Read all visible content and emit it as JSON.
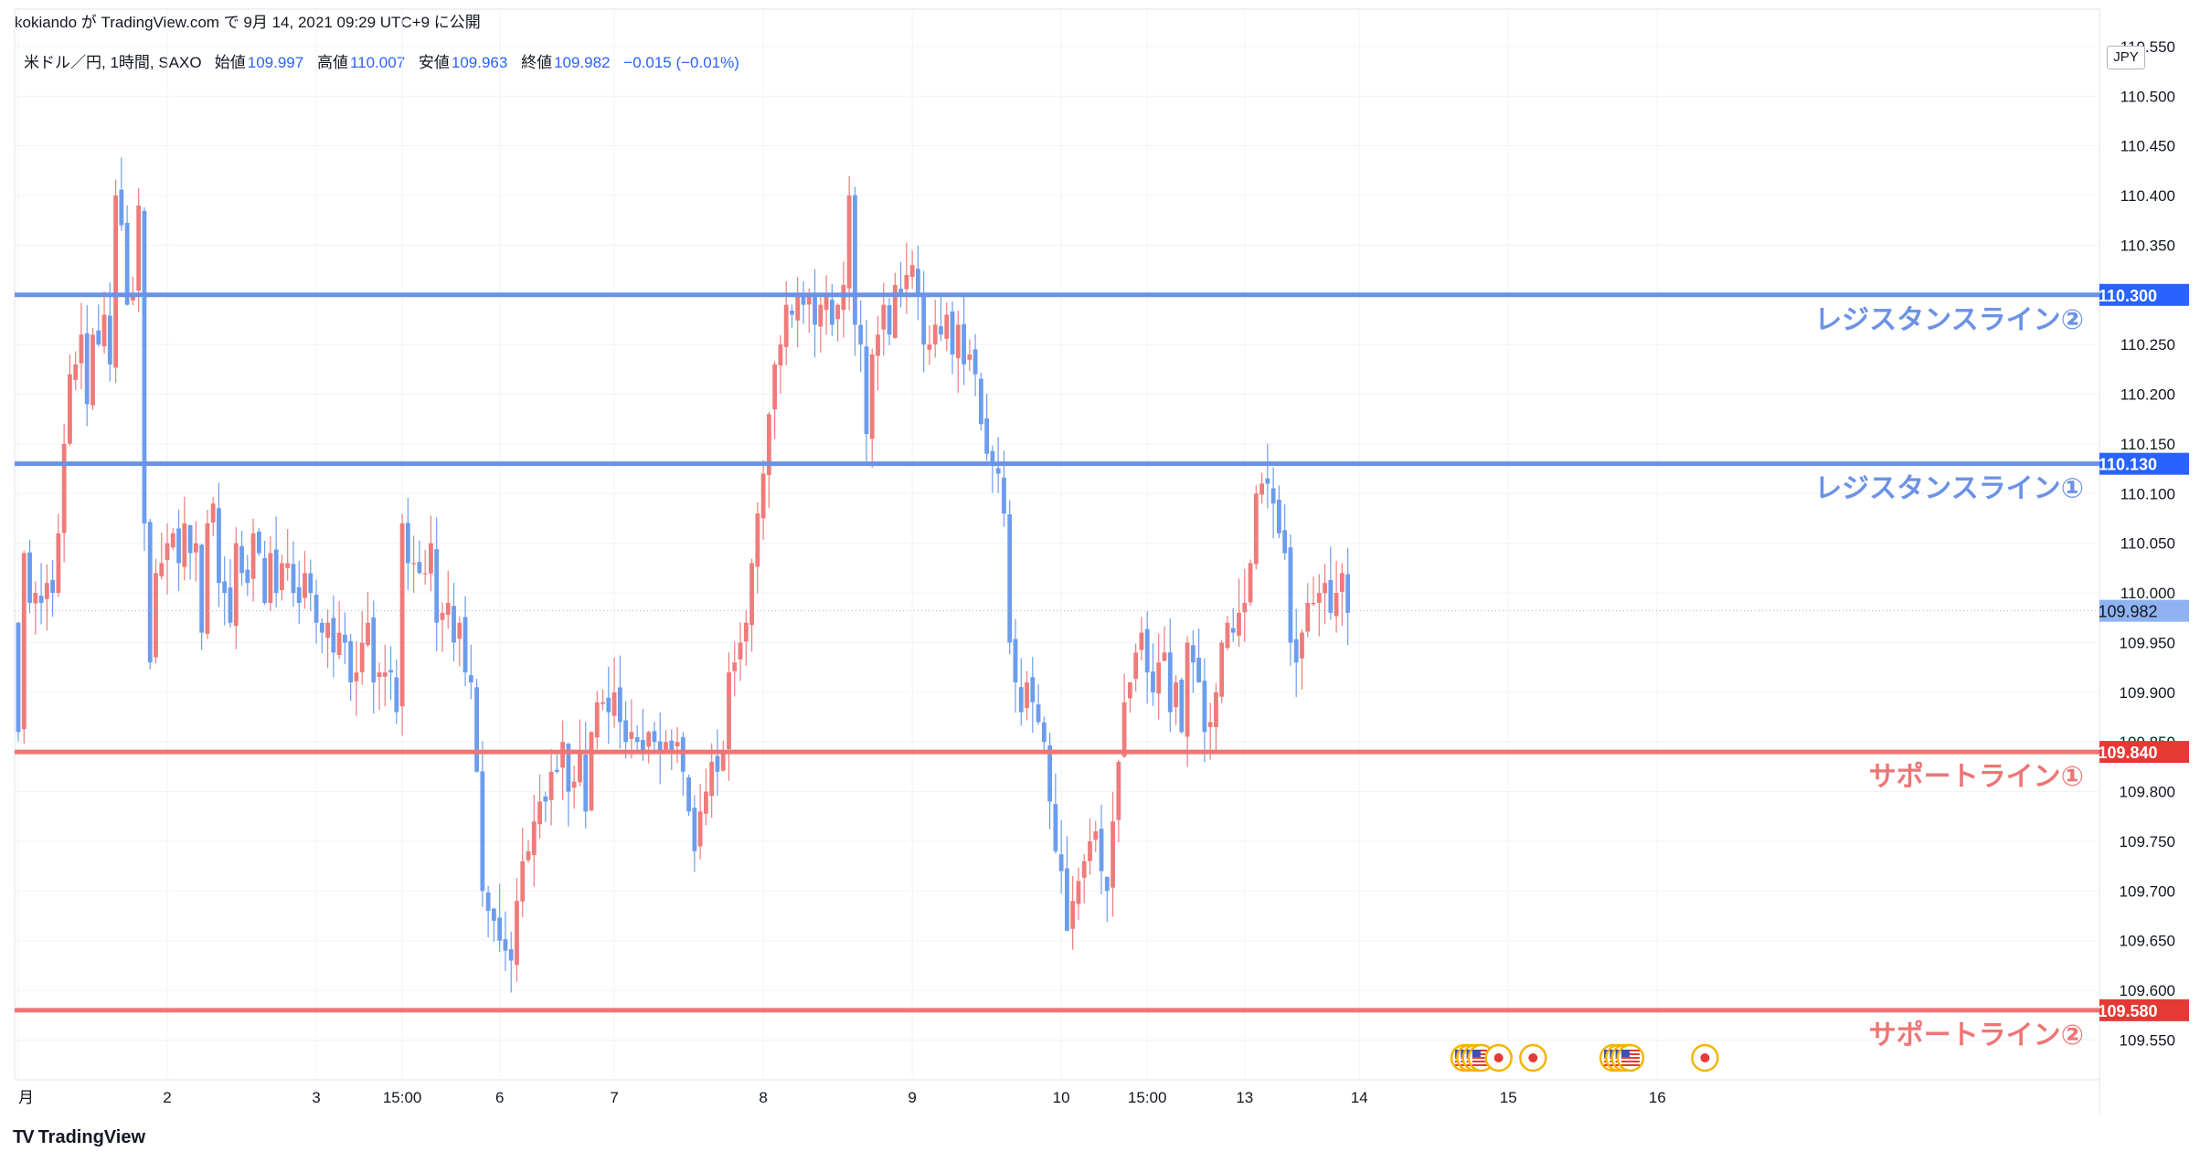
{
  "header": {
    "publisher": "kokiando",
    "text": "が TradingView.com で 9月 14, 2021 09:29 UTC+9 に公開"
  },
  "legend": {
    "symbol": "米ドル／円, 1時間, SAXO",
    "open_label": "始値",
    "open": "109.997",
    "high_label": "高値",
    "high": "110.007",
    "low_label": "安値",
    "low": "109.963",
    "close_label": "終値",
    "close": "109.982",
    "change": "−0.015 (−0.01%)"
  },
  "currency": "JPY",
  "footer": {
    "brand": "TradingView",
    "logo": "tradingview-logo-icon"
  },
  "colors": {
    "up": "#ef7b7b",
    "down": "#6c9ded",
    "resistance": "#6c92e6",
    "support": "#ef7575",
    "accent": "#2962ff"
  },
  "chart_data": {
    "type": "candlestick",
    "symbol": "USD/JPY",
    "timeframe": "1h",
    "y_range": [
      109.51,
      110.56
    ],
    "y_ticks": [
      "109.550",
      "109.600",
      "109.650",
      "109.700",
      "109.750",
      "109.800",
      "109.850",
      "109.900",
      "109.950",
      "110.000",
      "110.050",
      "110.100",
      "110.150",
      "110.200",
      "110.250",
      "110.300",
      "110.350",
      "110.400",
      "110.450",
      "110.500",
      "110.550"
    ],
    "y_tick_values": [
      109.55,
      109.6,
      109.65,
      109.7,
      109.75,
      109.8,
      109.85,
      109.9,
      109.95,
      110.0,
      110.05,
      110.1,
      110.15,
      110.2,
      110.25,
      110.3,
      110.35,
      110.4,
      110.45,
      110.5,
      110.55
    ],
    "x_labels": [
      {
        "label": "月",
        "bar": 0
      },
      {
        "label": "2",
        "bar": 26
      },
      {
        "label": "3",
        "bar": 52
      },
      {
        "label": "15:00",
        "bar": 67
      },
      {
        "label": "6",
        "bar": 84
      },
      {
        "label": "7",
        "bar": 104
      },
      {
        "label": "8",
        "bar": 130
      },
      {
        "label": "9",
        "bar": 156
      },
      {
        "label": "10",
        "bar": 182
      },
      {
        "label": "15:00",
        "bar": 197
      },
      {
        "label": "13",
        "bar": 214
      },
      {
        "label": "14",
        "bar": 234
      },
      {
        "label": "15",
        "bar": 260
      },
      {
        "label": "16",
        "bar": 286
      }
    ],
    "last_price": "109.982",
    "last_price_value": 109.982,
    "horizontal_lines": [
      {
        "name": "レジスタンスライン②",
        "value": 110.3,
        "price_label": "110.300",
        "kind": "resistance"
      },
      {
        "name": "レジスタンスライン①",
        "value": 110.13,
        "price_label": "110.130",
        "kind": "resistance"
      },
      {
        "name": "サポートライン①",
        "value": 109.84,
        "price_label": "109.840",
        "kind": "support"
      },
      {
        "name": "サポートライン②",
        "value": 109.58,
        "price_label": "109.580",
        "kind": "support"
      }
    ],
    "event_icons": [
      {
        "icon": "us-flag-icon",
        "bar": 252
      },
      {
        "icon": "us-flag-icon",
        "bar": 253
      },
      {
        "icon": "us-flag-icon",
        "bar": 254
      },
      {
        "icon": "us-flag-icon",
        "bar": 255
      },
      {
        "icon": "japan-flag-icon",
        "bar": 258
      },
      {
        "icon": "japan-flag-icon",
        "bar": 264
      },
      {
        "icon": "us-flag-icon",
        "bar": 278
      },
      {
        "icon": "us-flag-icon",
        "bar": 279
      },
      {
        "icon": "us-flag-icon",
        "bar": 280
      },
      {
        "icon": "us-flag-icon",
        "bar": 281
      },
      {
        "icon": "japan-flag-icon",
        "bar": 294
      }
    ],
    "closes": [
      109.86,
      110.04,
      109.99,
      110.0,
      109.99,
      110.01,
      110.0,
      110.06,
      110.15,
      110.22,
      110.23,
      110.26,
      110.19,
      110.26,
      110.25,
      110.28,
      110.23,
      110.4,
      110.37,
      110.29,
      110.3,
      110.39,
      110.07,
      109.93,
      110.02,
      110.03,
      110.05,
      110.06,
      110.03,
      110.07,
      110.04,
      110.05,
      109.96,
      110.07,
      110.09,
      110.01,
      110.0,
      109.97,
      110.05,
      110.02,
      110.01,
      110.06,
      110.04,
      109.99,
      110.04,
      110.0,
      110.03,
      110.03,
      110.0,
      109.99,
      110.02,
      110.0,
      109.97,
      109.96,
      109.97,
      109.94,
      109.96,
      109.95,
      109.91,
      109.92,
      109.95,
      109.97,
      109.91,
      109.92,
      109.92,
      109.92,
      109.88,
      110.07,
      110.03,
      110.03,
      110.02,
      110.02,
      110.05,
      109.97,
      109.98,
      109.99,
      109.95,
      109.97,
      109.92,
      109.91,
      109.82,
      109.7,
      109.68,
      109.67,
      109.65,
      109.64,
      109.63,
      109.69,
      109.73,
      109.74,
      109.77,
      109.79,
      109.79,
      109.82,
      109.82,
      109.85,
      109.8,
      109.81,
      109.84,
      109.78,
      109.86,
      109.89,
      109.89,
      109.88,
      109.9,
      109.87,
      109.85,
      109.86,
      109.85,
      109.84,
      109.86,
      109.85,
      109.84,
      109.85,
      109.84,
      109.85,
      109.82,
      109.78,
      109.74,
      109.78,
      109.8,
      109.83,
      109.82,
      109.84,
      109.92,
      109.93,
      109.95,
      109.97,
      110.03,
      110.08,
      110.12,
      110.18,
      110.23,
      110.25,
      110.29,
      110.28,
      110.3,
      110.29,
      110.3,
      110.27,
      110.29,
      110.3,
      110.27,
      110.29,
      110.31,
      110.4,
      110.27,
      110.25,
      110.16,
      110.24,
      110.26,
      110.29,
      110.26,
      110.31,
      110.3,
      110.32,
      110.33,
      110.3,
      110.25,
      110.25,
      110.27,
      110.26,
      110.28,
      110.24,
      110.27,
      110.23,
      110.24,
      110.22,
      110.17,
      110.14,
      110.13,
      110.12,
      110.08,
      109.95,
      109.91,
      109.88,
      109.91,
      109.89,
      109.87,
      109.85,
      109.79,
      109.74,
      109.72,
      109.66,
      109.69,
      109.71,
      109.73,
      109.75,
      109.76,
      109.72,
      109.7,
      109.77,
      109.83,
      109.89,
      109.91,
      109.94,
      109.96,
      109.92,
      109.9,
      109.93,
      109.94,
      109.88,
      109.91,
      109.86,
      109.95,
      109.93,
      109.91,
      109.86,
      109.87,
      109.9,
      109.95,
      109.97,
      109.96,
      109.98,
      109.99,
      110.03,
      110.1,
      110.11,
      110.11,
      110.09,
      110.06,
      110.04,
      109.95,
      109.93,
      109.96,
      109.99,
      109.99,
      110.0,
      110.01,
      109.98,
      110.0,
      110.02,
      109.98
    ]
  }
}
